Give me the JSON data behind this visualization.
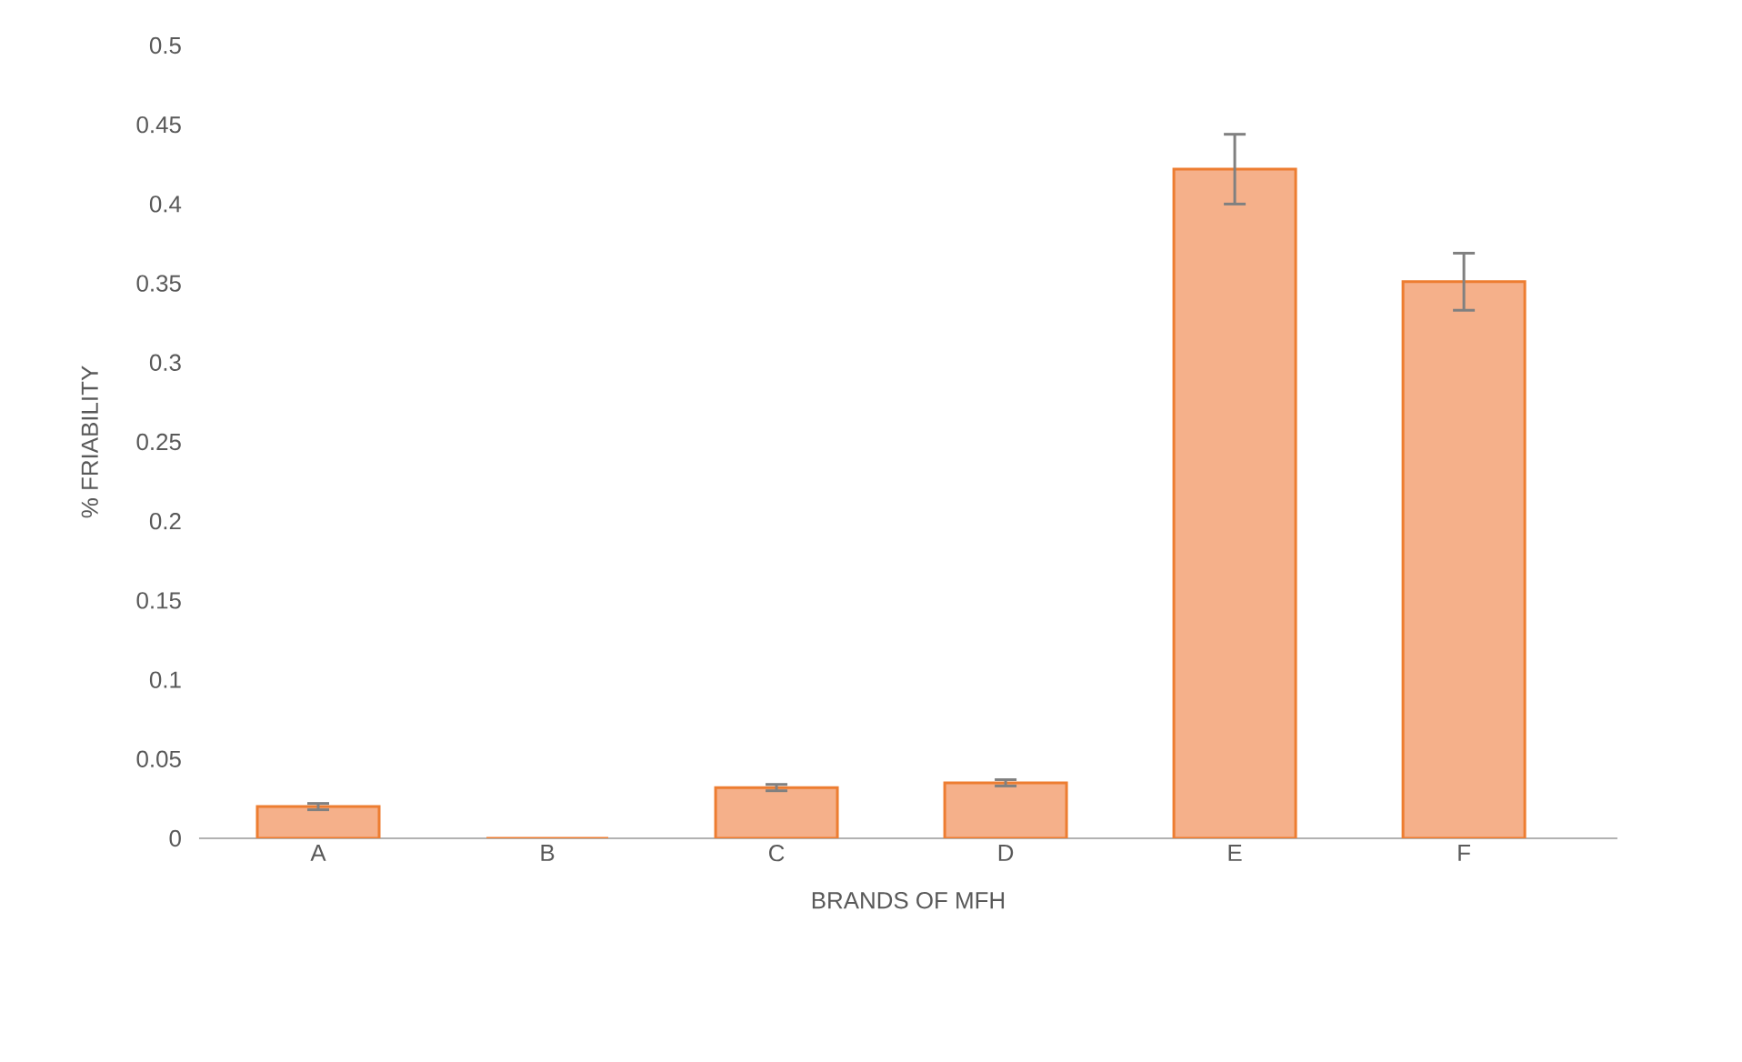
{
  "chart_data": {
    "type": "bar",
    "xlabel": "BRANDS OF MFH",
    "ylabel": "% FRIABILITY",
    "categories": [
      "A",
      "B",
      "C",
      "D",
      "E",
      "F"
    ],
    "values": [
      0.02,
      0,
      0.032,
      0.035,
      0.422,
      0.351
    ],
    "errors": [
      0.002,
      null,
      0.002,
      0.002,
      0.022,
      0.018
    ],
    "color": "#f5b08a",
    "ylim": [
      0,
      0.5
    ],
    "yticks": [
      0,
      0.05,
      0.1,
      0.15,
      0.2,
      0.25,
      0.3,
      0.35,
      0.4,
      0.45,
      0.5
    ],
    "grid": false
  }
}
